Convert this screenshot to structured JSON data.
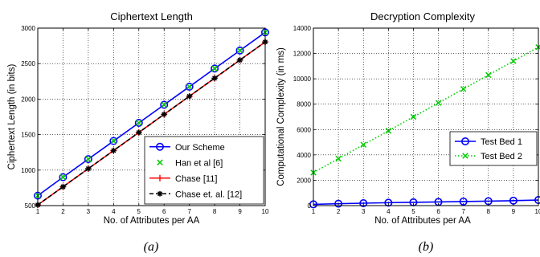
{
  "chart_data": [
    {
      "type": "line",
      "title": "Ciphertext Length",
      "xlabel": "No. of Attributes per AA",
      "ylabel": "Ciphertext Length (in bits)",
      "caption": "(a)",
      "x": [
        1,
        2,
        3,
        4,
        5,
        6,
        7,
        8,
        9,
        10
      ],
      "xlim": [
        1,
        10
      ],
      "ylim": [
        500,
        3000
      ],
      "yticks": [
        500,
        1000,
        1500,
        2000,
        2500,
        3000
      ],
      "grid": true,
      "legend_position": "bottom-right",
      "series": [
        {
          "name": "Our Scheme",
          "values": [
            640,
            900,
            1155,
            1410,
            1665,
            1920,
            2175,
            2430,
            2685,
            2940
          ],
          "color": "#0000ff",
          "line": "solid",
          "marker": "circle"
        },
        {
          "name": "Han et al [6]",
          "values": [
            640,
            900,
            1155,
            1410,
            1665,
            1920,
            2175,
            2430,
            2685,
            2940
          ],
          "color": "#00cc00",
          "line": "none",
          "marker": "x"
        },
        {
          "name": "Chase [11]",
          "values": [
            510,
            765,
            1020,
            1275,
            1530,
            1785,
            2040,
            2295,
            2550,
            2805
          ],
          "color": "#ff0000",
          "line": "solid",
          "marker": "plus"
        },
        {
          "name": "Chase et. al. [12]",
          "values": [
            510,
            765,
            1020,
            1275,
            1530,
            1785,
            2040,
            2295,
            2550,
            2805
          ],
          "color": "#000000",
          "line": "dashed",
          "marker": "star"
        }
      ]
    },
    {
      "type": "line",
      "title": "Decryption Complexity",
      "xlabel": "No. of Attributes per AA",
      "ylabel": "Computational Complexity (in ms)",
      "caption": "(b)",
      "x": [
        1,
        2,
        3,
        4,
        5,
        6,
        7,
        8,
        9,
        10
      ],
      "xlim": [
        1,
        10
      ],
      "ylim": [
        0,
        14000
      ],
      "yticks": [
        0,
        2000,
        4000,
        6000,
        8000,
        10000,
        12000,
        14000
      ],
      "grid": true,
      "legend_position": "middle-right",
      "series": [
        {
          "name": "Test Bed 1",
          "values": [
            100,
            150,
            190,
            230,
            260,
            290,
            320,
            350,
            390,
            440
          ],
          "color": "#0000ff",
          "line": "solid",
          "marker": "circle"
        },
        {
          "name": "Test Bed 2",
          "values": [
            2600,
            3700,
            4800,
            5900,
            7000,
            8100,
            9200,
            10300,
            11400,
            12500
          ],
          "color": "#00cc00",
          "line": "dotted",
          "marker": "x"
        }
      ]
    }
  ]
}
